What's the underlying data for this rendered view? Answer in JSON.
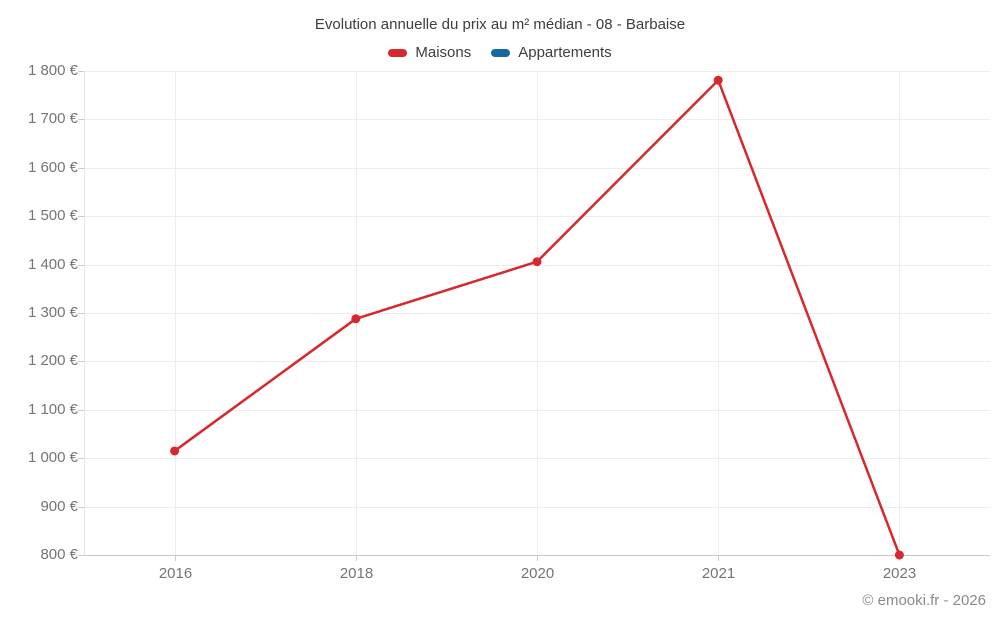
{
  "title": "Evolution annuelle du prix au m² médian - 08 - Barbaise",
  "footer": "© emooki.fr - 2026",
  "legend": [
    {
      "label": "Maisons",
      "color": "#d7282d"
    },
    {
      "label": "Appartements",
      "color": "#17699e"
    }
  ],
  "colors": {
    "grid": "#ededed",
    "axis": "#c9c9c9",
    "plot_border": "#e5e5e5",
    "tick": "#cccccc",
    "title_text": "#3e3e3e",
    "tick_text": "#757575",
    "footer_text": "#8a8a8a"
  },
  "chart_data": {
    "type": "line",
    "categories": [
      "2016",
      "2018",
      "2020",
      "2021",
      "2023"
    ],
    "series": [
      {
        "name": "Maisons",
        "color": "#d7282d",
        "values": [
          1015,
          1288,
          1406,
          1781,
          800
        ]
      },
      {
        "name": "Appartements",
        "color": "#17699e",
        "values": []
      }
    ],
    "title": "Evolution annuelle du prix au m² médian - 08 - Barbaise",
    "xlabel": "",
    "ylabel": "",
    "ylim": [
      800,
      1800
    ],
    "y_ticks": [
      {
        "value": 800,
        "label": "800 €"
      },
      {
        "value": 900,
        "label": "900 €"
      },
      {
        "value": 1000,
        "label": "1 000 €"
      },
      {
        "value": 1100,
        "label": "1 100 €"
      },
      {
        "value": 1200,
        "label": "1 200 €"
      },
      {
        "value": 1300,
        "label": "1 300 €"
      },
      {
        "value": 1400,
        "label": "1 400 €"
      },
      {
        "value": 1500,
        "label": "1 500 €"
      },
      {
        "value": 1600,
        "label": "1 600 €"
      },
      {
        "value": 1700,
        "label": "1 700 €"
      },
      {
        "value": 1800,
        "label": "1 800 €"
      }
    ],
    "grid": true,
    "legend_position": "top"
  }
}
